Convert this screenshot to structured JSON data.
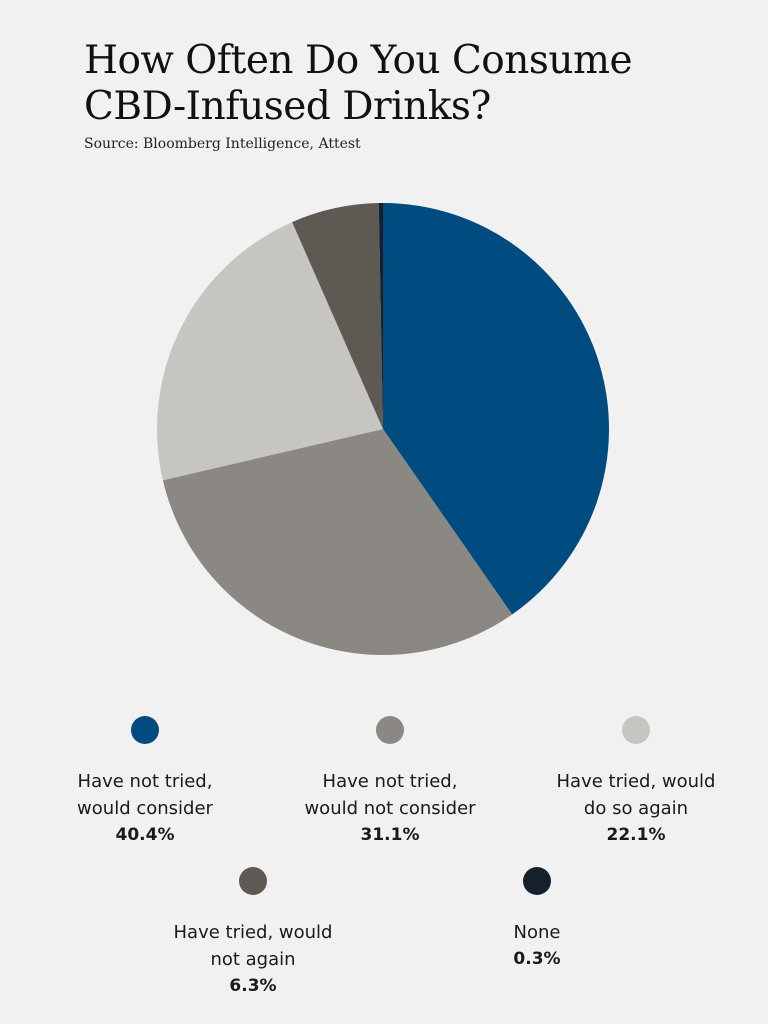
{
  "chart_data": {
    "type": "pie",
    "title": "How Often Do You Consume CBD-Infused Drinks?",
    "source": "Source: Bloomberg Intelligence, Attest",
    "slices": [
      {
        "label": "Have not tried,\nwould consider",
        "value": 40.4,
        "display": "40.4%",
        "color": "#004b7f"
      },
      {
        "label": "Have not tried,\nwould not consider",
        "value": 31.1,
        "display": "31.1%",
        "color": "#8b8782"
      },
      {
        "label": "Have tried, would\ndo so again",
        "value": 22.1,
        "display": "22.1%",
        "color": "#c6c5c2"
      },
      {
        "label": "Have tried, would\nnot again",
        "value": 6.3,
        "display": "6.3%",
        "color": "#5e5a53"
      },
      {
        "label": "None",
        "value": 0.3,
        "display": "0.3%",
        "color": "#15202b"
      }
    ],
    "start_angle_deg": 0,
    "direction": "clockwise",
    "legend_position": "bottom"
  }
}
